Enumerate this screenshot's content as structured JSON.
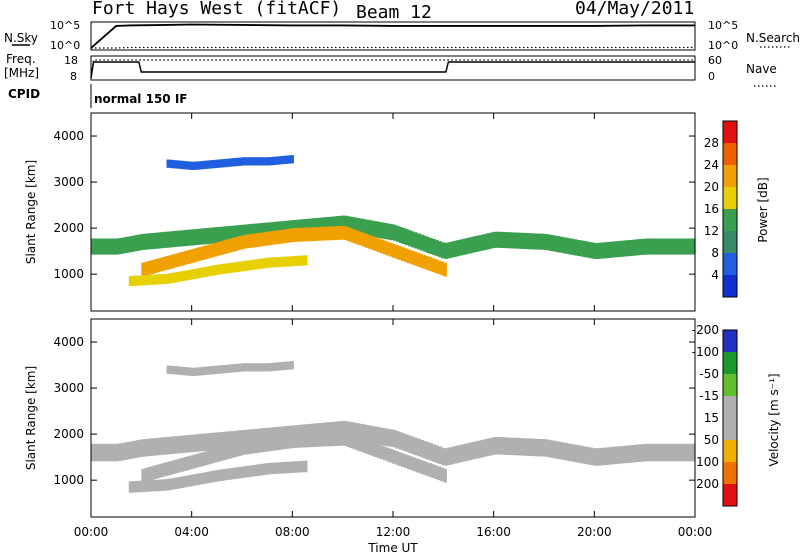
{
  "header": {
    "radar": "Fort Hays West (fitACF)",
    "beam": "Beam 12",
    "date": "04/May/2011"
  },
  "noise_panel": {
    "left_label": "N.Sky",
    "left_ticks": [
      "10^5",
      "10^0"
    ],
    "right_ticks": [
      "10^5",
      "10^0"
    ],
    "right_label": "N.Search"
  },
  "freq_panel": {
    "left_label_1": "Freq.",
    "left_label_2": "[MHz]",
    "left_ticks": [
      "18",
      "8"
    ],
    "right_ticks": [
      "60",
      "0"
    ],
    "right_label": "Nave"
  },
  "cpid": {
    "label": "CPID",
    "value": "normal 150 IF"
  },
  "x_axis": {
    "label": "Time UT",
    "ticks": [
      "00:00",
      "04:00",
      "08:00",
      "12:00",
      "16:00",
      "20:00",
      "00:00"
    ]
  },
  "power_panel": {
    "ylabel": "Slant Range [km]",
    "yticks": [
      "1000",
      "2000",
      "3000",
      "4000"
    ],
    "colorbar_label": "Power [dB]",
    "colorbar_ticks": [
      "4",
      "8",
      "12",
      "16",
      "20",
      "24",
      "28"
    ]
  },
  "velocity_panel": {
    "ylabel": "Slant Range [km]",
    "yticks": [
      "1000",
      "2000",
      "3000",
      "4000"
    ],
    "colorbar_label": "Velocity [m s⁻¹]",
    "colorbar_ticks": [
      "200",
      "100",
      "50",
      "15",
      "-15",
      "-50",
      "-100",
      "-200"
    ]
  },
  "colors": {
    "power_scale": [
      "#1030d0",
      "#2060e0",
      "#3a8a6a",
      "#3aa050",
      "#e6d000",
      "#f0a000",
      "#f06000",
      "#e01010"
    ],
    "velocity_scale": [
      "#2030c0",
      "#1a9a2a",
      "#60c030",
      "#b0b0b0",
      "#b0b0b0",
      "#f0b000",
      "#f07000",
      "#e01010"
    ]
  },
  "chart_data": [
    {
      "type": "line",
      "title": "N.Sky / N.Search",
      "x": [
        0,
        1,
        1.5,
        3,
        4,
        6,
        8,
        10,
        12,
        14,
        16,
        18,
        20,
        22,
        24
      ],
      "series": [
        {
          "name": "N.Sky",
          "values": [
            0,
            4.6,
            4.7,
            4.8,
            4.9,
            4.8,
            4.7,
            4.7,
            4.6,
            4.6,
            4.6,
            4.6,
            4.6,
            4.7,
            4.7
          ]
        },
        {
          "name": "N.Search",
          "values": [
            0,
            0,
            0.1,
            0.1,
            0.1,
            0.1,
            0.1,
            0.1,
            0.1,
            0.1,
            0.1,
            0.1,
            0.1,
            0.1,
            0.1
          ]
        }
      ],
      "ylim": [
        0,
        5
      ]
    },
    {
      "type": "line",
      "title": "Freq / Nave",
      "x": [
        0,
        0.1,
        1.9,
        2.0,
        14.1,
        14.2,
        24
      ],
      "series": [
        {
          "name": "Freq",
          "values": [
            8,
            16,
            16,
            11,
            11,
            16,
            16
          ]
        },
        {
          "name": "Nave",
          "values": [
            0,
            54,
            54,
            54,
            54,
            54,
            54
          ]
        }
      ],
      "ylim": [
        8,
        18
      ]
    },
    {
      "type": "heatmap",
      "title": "Power",
      "xlabel": "Time UT",
      "ylabel": "Slant Range [km]",
      "xlim": [
        0,
        24
      ],
      "ylim": [
        200,
        4500
      ],
      "colorbar": {
        "label": "Power [dB]",
        "range": [
          0,
          32
        ]
      },
      "bands": [
        {
          "name": "band-a",
          "x": [
            0,
            1,
            2,
            4,
            6,
            8,
            10,
            12,
            14,
            16,
            18,
            20,
            22,
            24
          ],
          "y": [
            1600,
            1600,
            1700,
            1800,
            1900,
            2000,
            2100,
            1900,
            1500,
            1750,
            1700,
            1500,
            1600,
            1600
          ],
          "width": 350,
          "value": 14
        },
        {
          "name": "band-b",
          "x": [
            2,
            4,
            6,
            8,
            10,
            12,
            14
          ],
          "y": [
            1100,
            1400,
            1700,
            1850,
            1900,
            1500,
            1100
          ],
          "width": 300,
          "value": 22
        },
        {
          "name": "band-c",
          "x": [
            1.5,
            3,
            5,
            7,
            8.5
          ],
          "y": [
            850,
            900,
            1100,
            1250,
            1300
          ],
          "width": 220,
          "value": 18
        },
        {
          "name": "band-d",
          "x": [
            3,
            4,
            5,
            6,
            7,
            8
          ],
          "y": [
            3400,
            3350,
            3400,
            3450,
            3450,
            3500
          ],
          "width": 180,
          "value": 6
        }
      ]
    },
    {
      "type": "heatmap",
      "title": "Velocity",
      "xlabel": "Time UT",
      "ylabel": "Slant Range [km]",
      "xlim": [
        0,
        24
      ],
      "ylim": [
        200,
        4500
      ],
      "colorbar": {
        "label": "Velocity [m s⁻¹]",
        "range": [
          -200,
          200
        ]
      },
      "bands": [
        {
          "name": "band-a",
          "x": [
            0,
            1,
            2,
            4,
            6,
            8,
            10,
            12,
            14,
            16,
            18,
            20,
            22,
            24
          ],
          "y": [
            1600,
            1600,
            1700,
            1800,
            1900,
            2000,
            2100,
            1900,
            1500,
            1750,
            1700,
            1500,
            1600,
            1600
          ],
          "width": 380,
          "value": 0
        },
        {
          "name": "band-b",
          "x": [
            2,
            4,
            6,
            8,
            10,
            12,
            14
          ],
          "y": [
            1100,
            1400,
            1700,
            1850,
            1900,
            1500,
            1100
          ],
          "width": 300,
          "value": 0
        },
        {
          "name": "band-c",
          "x": [
            1.5,
            3,
            5,
            7,
            8.5
          ],
          "y": [
            850,
            900,
            1100,
            1250,
            1300
          ],
          "width": 250,
          "value": -40
        },
        {
          "name": "band-d",
          "x": [
            3,
            4,
            5,
            6,
            7,
            8
          ],
          "y": [
            3400,
            3350,
            3400,
            3450,
            3450,
            3500
          ],
          "width": 180,
          "value": 0
        }
      ]
    }
  ]
}
